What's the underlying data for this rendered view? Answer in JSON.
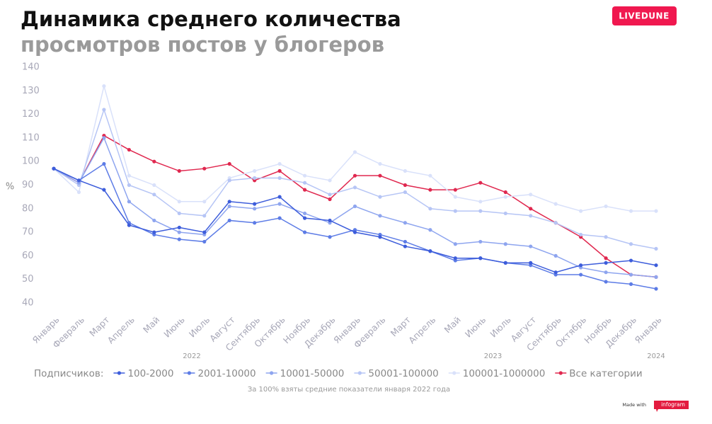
{
  "chart_data": {
    "type": "line",
    "title": "Динамика среднего количества",
    "subtitle": "просмотров постов у блогеров",
    "brand": "LIVEDUNE",
    "y_label": "%",
    "legend_title": "Подписчиков:",
    "note": "За 100% взяты средние показатели января 2022 года",
    "footer": {
      "made_with": "Made with",
      "logo": "infogram"
    },
    "categories": [
      "Январь",
      "Февраль",
      "Март",
      "Апрель",
      "Май",
      "Июнь",
      "Июль",
      "Август",
      "Сентябрь",
      "Октябрь",
      "Ноябрь",
      "Декабрь",
      "Январь",
      "Февраль",
      "Март",
      "Апрель",
      "Май",
      "Июнь",
      "Июль",
      "Август",
      "Сентябрь",
      "Октябрь",
      "Ноябрь",
      "Декабрь",
      "Январь"
    ],
    "x_groups": [
      {
        "label": "2022",
        "from": 0,
        "to": 11
      },
      {
        "label": "2023",
        "from": 12,
        "to": 23
      },
      {
        "label": "2024",
        "from": 24,
        "to": 24
      }
    ],
    "ylim": [
      40,
      140
    ],
    "yticks": [
      40,
      50,
      60,
      70,
      80,
      90,
      100,
      110,
      120,
      130,
      140
    ],
    "series": [
      {
        "name": "100-2000",
        "color": "#3d5ddb",
        "values": [
          97,
          92,
          88,
          73,
          70,
          72,
          70,
          83,
          82,
          85,
          76,
          75,
          70,
          68,
          64,
          62,
          59,
          59,
          57,
          57,
          53,
          56,
          57,
          58,
          56
        ]
      },
      {
        "name": "2001-10000",
        "color": "#5d7ce6",
        "values": [
          97,
          92,
          99,
          74,
          69,
          67,
          66,
          75,
          74,
          76,
          70,
          68,
          71,
          69,
          66,
          62,
          58,
          59,
          57,
          56,
          52,
          52,
          49,
          48,
          46
        ]
      },
      {
        "name": "10001-50000",
        "color": "#8ea5ef",
        "values": [
          97,
          91,
          110,
          83,
          75,
          70,
          69,
          81,
          80,
          82,
          78,
          74,
          81,
          77,
          74,
          71,
          65,
          66,
          65,
          64,
          60,
          55,
          53,
          52,
          51
        ]
      },
      {
        "name": "50001-100000",
        "color": "#b6c5f5",
        "values": [
          97,
          90,
          122,
          90,
          86,
          78,
          77,
          92,
          93,
          93,
          91,
          86,
          89,
          85,
          87,
          80,
          79,
          79,
          78,
          77,
          74,
          69,
          68,
          65,
          63
        ]
      },
      {
        "name": "100001-1000000",
        "color": "#d9e1fa",
        "values": [
          97,
          87,
          132,
          94,
          90,
          83,
          83,
          93,
          96,
          99,
          94,
          92,
          104,
          99,
          96,
          94,
          85,
          83,
          85,
          86,
          82,
          79,
          81,
          79,
          79
        ]
      },
      {
        "name": "Все категории",
        "color": "#e0284f",
        "values": [
          97,
          91,
          111,
          105,
          100,
          96,
          97,
          99,
          92,
          96,
          88,
          84,
          94,
          94,
          90,
          88,
          88,
          91,
          87,
          80,
          74,
          68,
          59,
          52,
          51
        ]
      }
    ]
  }
}
